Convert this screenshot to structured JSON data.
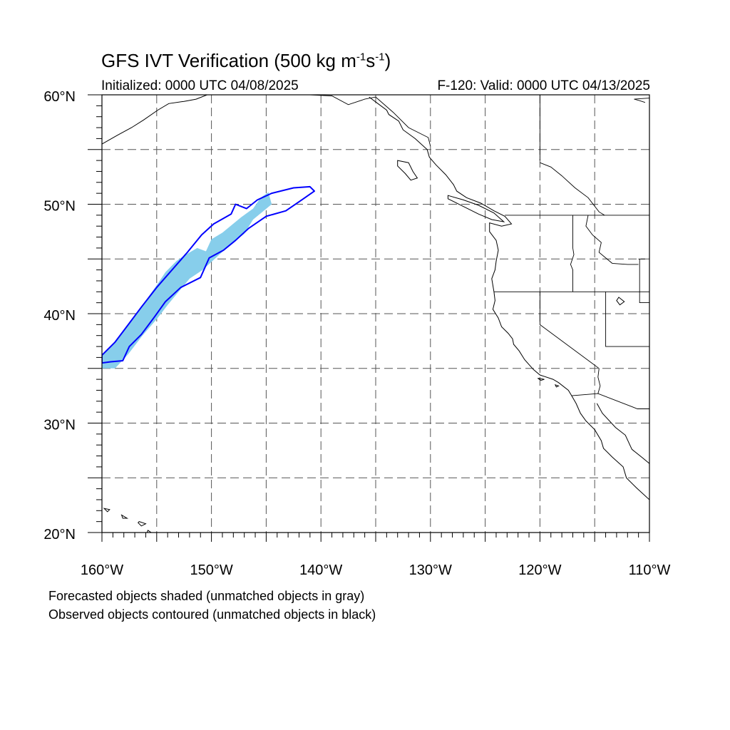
{
  "title": {
    "main": "GFS IVT Verification (500 kg m",
    "sup1": "-1",
    "mid": "s",
    "sup2": "-1",
    "end": ")"
  },
  "initialized": "Initialized: 0000 UTC 04/08/2025",
  "valid": "F-120: Valid: 0000 UTC 04/13/2025",
  "notes": {
    "line1": "Forecasted objects shaded (unmatched objects in gray)",
    "line2": "Observed objects contoured (unmatched objects in black)"
  },
  "axes": {
    "lon_range": [
      -160,
      -110
    ],
    "lat_range": [
      20,
      60
    ],
    "lon_ticks": [
      -160,
      -150,
      -140,
      -130,
      -120,
      -110
    ],
    "lon_labels": [
      "160°W",
      "150°W",
      "140°W",
      "130°W",
      "120°W",
      "110°W"
    ],
    "lat_ticks": [
      20,
      30,
      40,
      50,
      60
    ],
    "lat_labels": [
      "20°N",
      "30°N",
      "40°N",
      "50°N",
      "60°N"
    ],
    "grid_lon": [
      -155,
      -150,
      -145,
      -140,
      -135,
      -130,
      -125,
      -120,
      -115
    ],
    "grid_lat": [
      25,
      30,
      35,
      40,
      45,
      50,
      55
    ]
  },
  "colors": {
    "forecast_fill": "#87ceeb",
    "observed_contour": "#0000ff",
    "coast": "#000000",
    "grid": "#555555"
  },
  "forecast_object": [
    [
      -160,
      36.3
    ],
    [
      -159.2,
      37.0
    ],
    [
      -158.2,
      38.2
    ],
    [
      -157.2,
      39.6
    ],
    [
      -156.0,
      41.2
    ],
    [
      -155.0,
      42.6
    ],
    [
      -154.2,
      43.8
    ],
    [
      -153.2,
      44.8
    ],
    [
      -152.5,
      45.3
    ],
    [
      -151.3,
      46.0
    ],
    [
      -150.5,
      45.7
    ],
    [
      -150.0,
      46.8
    ],
    [
      -149.0,
      47.4
    ],
    [
      -147.3,
      48.8
    ],
    [
      -146.2,
      49.6
    ],
    [
      -145.5,
      50.6
    ],
    [
      -144.8,
      51.1
    ],
    [
      -144.5,
      50.0
    ],
    [
      -146.2,
      48.6
    ],
    [
      -147.0,
      47.3
    ],
    [
      -148.4,
      46.2
    ],
    [
      -149.6,
      45.1
    ],
    [
      -150.8,
      44.0
    ],
    [
      -152.0,
      43.2
    ],
    [
      -153.0,
      42.0
    ],
    [
      -154.0,
      40.8
    ],
    [
      -155.0,
      39.5
    ],
    [
      -156.3,
      38.0
    ],
    [
      -157.6,
      36.3
    ],
    [
      -158.8,
      35.0
    ],
    [
      -160,
      35.0
    ]
  ],
  "observed_object": [
    [
      -160,
      36.2
    ],
    [
      -158.8,
      37.4
    ],
    [
      -157.6,
      39.0
    ],
    [
      -156.4,
      40.6
    ],
    [
      -155.0,
      42.4
    ],
    [
      -153.6,
      44.0
    ],
    [
      -152.2,
      45.6
    ],
    [
      -150.9,
      47.2
    ],
    [
      -149.8,
      48.2
    ],
    [
      -148.2,
      49.1
    ],
    [
      -147.8,
      50.0
    ],
    [
      -146.8,
      49.6
    ],
    [
      -145.8,
      50.4
    ],
    [
      -144.5,
      51.0
    ],
    [
      -142.5,
      51.5
    ],
    [
      -141.0,
      51.6
    ],
    [
      -140.6,
      51.2
    ],
    [
      -141.6,
      50.5
    ],
    [
      -143.2,
      49.4
    ],
    [
      -145.0,
      48.9
    ],
    [
      -146.6,
      47.8
    ],
    [
      -147.8,
      46.7
    ],
    [
      -148.9,
      45.8
    ],
    [
      -150.2,
      45.1
    ],
    [
      -151.0,
      43.3
    ],
    [
      -152.8,
      42.4
    ],
    [
      -154.2,
      41.1
    ],
    [
      -155.2,
      39.7
    ],
    [
      -156.4,
      38.1
    ],
    [
      -157.5,
      37.0
    ],
    [
      -158.1,
      35.7
    ],
    [
      -159.2,
      35.6
    ],
    [
      -160,
      35.5
    ]
  ],
  "coastline": [
    [
      -135.6,
      59.8
    ],
    [
      -134.8,
      59.2
    ],
    [
      -134.0,
      58.6
    ],
    [
      -133.8,
      58.2
    ],
    [
      -132.9,
      57.6
    ],
    [
      -132.5,
      56.8
    ],
    [
      -131.4,
      56.0
    ],
    [
      -130.3,
      55.0
    ],
    [
      -130.1,
      54.3
    ],
    [
      -129.5,
      53.6
    ],
    [
      -128.6,
      52.7
    ],
    [
      -127.9,
      51.8
    ],
    [
      -127.6,
      51.2
    ],
    [
      -126.7,
      50.6
    ],
    [
      -125.4,
      50.1
    ],
    [
      -124.2,
      49.4
    ],
    [
      -123.2,
      48.9
    ],
    [
      -122.6,
      48.2
    ],
    [
      -123.5,
      48.0
    ],
    [
      -124.6,
      48.3
    ],
    [
      -124.6,
      47.5
    ],
    [
      -124.0,
      46.7
    ],
    [
      -123.8,
      45.8
    ],
    [
      -124.0,
      44.8
    ],
    [
      -124.1,
      44.0
    ],
    [
      -124.4,
      43.2
    ],
    [
      -124.2,
      42.0
    ],
    [
      -124.1,
      41.2
    ],
    [
      -124.3,
      40.4
    ],
    [
      -123.8,
      39.6
    ],
    [
      -123.5,
      38.8
    ],
    [
      -122.9,
      38.2
    ],
    [
      -122.5,
      37.7
    ],
    [
      -122.4,
      37.2
    ],
    [
      -121.9,
      36.6
    ],
    [
      -121.4,
      35.8
    ],
    [
      -120.6,
      34.9
    ],
    [
      -120.0,
      34.4
    ],
    [
      -118.8,
      34.0
    ],
    [
      -118.3,
      33.7
    ],
    [
      -117.4,
      33.0
    ],
    [
      -117.1,
      32.5
    ],
    [
      -116.7,
      31.8
    ],
    [
      -116.3,
      30.9
    ],
    [
      -115.8,
      30.2
    ],
    [
      -115.0,
      29.4
    ],
    [
      -114.4,
      28.4
    ],
    [
      -114.2,
      27.7
    ],
    [
      -113.4,
      26.9
    ],
    [
      -112.4,
      26.0
    ],
    [
      -112.1,
      25.0
    ],
    [
      -111.2,
      24.1
    ],
    [
      -110.0,
      23.0
    ]
  ],
  "gulf_coast": [
    [
      -114.8,
      31.8
    ],
    [
      -114.3,
      30.9
    ],
    [
      -113.1,
      29.6
    ],
    [
      -112.2,
      28.9
    ],
    [
      -111.6,
      27.6
    ],
    [
      -110.6,
      26.8
    ],
    [
      -110.0,
      26.3
    ]
  ],
  "alaska_coast": [
    [
      -160,
      55.5
    ],
    [
      -158.6,
      56.3
    ],
    [
      -157.3,
      57.0
    ],
    [
      -156.2,
      57.7
    ],
    [
      -154.9,
      58.6
    ],
    [
      -153.9,
      59.2
    ],
    [
      -152.5,
      59.4
    ],
    [
      -151.4,
      59.6
    ],
    [
      -150.4,
      60.0
    ]
  ],
  "borders": [
    [
      [
        -123.2,
        49.0
      ],
      [
        -110,
        49.0
      ]
    ],
    [
      [
        -124.2,
        42.0
      ],
      [
        -110,
        42.0
      ]
    ],
    [
      [
        -120.0,
        42.0
      ],
      [
        -120.0,
        39.0
      ],
      [
        -114.6,
        35.0
      ]
    ],
    [
      [
        -117.0,
        49.0
      ],
      [
        -117.0,
        46.0
      ],
      [
        -116.9,
        45.4
      ],
      [
        -117.2,
        44.5
      ],
      [
        -117.0,
        44.0
      ],
      [
        -117.0,
        42.0
      ]
    ],
    [
      [
        -114.0,
        42.0
      ],
      [
        -114.0,
        37.0
      ],
      [
        -110,
        37.0
      ]
    ],
    [
      [
        -115.6,
        49.0
      ],
      [
        -115.8,
        48.0
      ],
      [
        -115.2,
        47.2
      ],
      [
        -114.4,
        46.5
      ],
      [
        -114.6,
        45.6
      ],
      [
        -113.4,
        44.6
      ],
      [
        -112.0,
        44.5
      ],
      [
        -111.0,
        44.5
      ]
    ],
    [
      [
        -111.0,
        45.0
      ],
      [
        -110.4,
        45.0
      ]
    ],
    [
      [
        -110.9,
        45.0
      ],
      [
        -110.9,
        41.0
      ],
      [
        -110,
        41.0
      ]
    ],
    [
      [
        -117.1,
        32.5
      ],
      [
        -114.7,
        32.7
      ],
      [
        -111.1,
        31.3
      ],
      [
        -110,
        31.3
      ]
    ],
    [
      [
        -120.0,
        60.0
      ],
      [
        -120.0,
        54.0
      ]
    ],
    [
      [
        -120.0,
        53.8
      ],
      [
        -119.0,
        53.4
      ],
      [
        -118.0,
        52.6
      ],
      [
        -116.8,
        51.5
      ],
      [
        -115.6,
        50.6
      ],
      [
        -114.6,
        49.3
      ],
      [
        -114.1,
        49.0
      ]
    ],
    [
      [
        -114.6,
        35.0
      ],
      [
        -114.7,
        34.2
      ],
      [
        -114.5,
        33.4
      ],
      [
        -114.7,
        32.7
      ]
    ],
    [
      [
        -141.0,
        60.0
      ],
      [
        -139.0,
        59.9
      ],
      [
        -137.5,
        59.1
      ],
      [
        -136.0,
        59.6
      ],
      [
        -135.0,
        59.8
      ],
      [
        -133.4,
        58.4
      ],
      [
        -132.0,
        57.0
      ],
      [
        -130.2,
        56.1
      ],
      [
        -130.0,
        55.3
      ]
    ],
    [
      [
        -110.4,
        59.3
      ],
      [
        -111.0,
        59.5
      ],
      [
        -111.4,
        59.6
      ],
      [
        -110.0,
        59.7
      ]
    ]
  ],
  "islands": [
    [
      [
        -133.0,
        54.0
      ],
      [
        -132.0,
        53.8
      ],
      [
        -131.6,
        53.0
      ],
      [
        -131.2,
        52.4
      ],
      [
        -131.8,
        52.2
      ],
      [
        -132.3,
        52.8
      ],
      [
        -133.0,
        53.5
      ],
      [
        -133.0,
        54.0
      ]
    ],
    [
      [
        -128.4,
        50.8
      ],
      [
        -127.0,
        50.4
      ],
      [
        -125.6,
        49.9
      ],
      [
        -124.2,
        49.2
      ],
      [
        -123.3,
        48.4
      ],
      [
        -124.4,
        48.6
      ],
      [
        -125.6,
        49.1
      ],
      [
        -127.0,
        49.8
      ],
      [
        -128.4,
        50.5
      ],
      [
        -128.4,
        50.8
      ]
    ],
    [
      [
        -155.8,
        20.2
      ],
      [
        -155.2,
        19.8
      ],
      [
        -154.8,
        19.5
      ],
      [
        -155.1,
        19.2
      ],
      [
        -155.9,
        19.1
      ],
      [
        -156.0,
        19.7
      ],
      [
        -155.8,
        20.2
      ]
    ],
    [
      [
        -156.6,
        21.0
      ],
      [
        -156.0,
        20.8
      ],
      [
        -156.4,
        20.6
      ],
      [
        -156.7,
        20.9
      ],
      [
        -156.6,
        21.0
      ]
    ],
    [
      [
        -158.2,
        21.6
      ],
      [
        -157.7,
        21.3
      ],
      [
        -158.1,
        21.3
      ],
      [
        -158.2,
        21.6
      ]
    ],
    [
      [
        -159.8,
        22.2
      ],
      [
        -159.3,
        22.1
      ],
      [
        -159.5,
        21.9
      ],
      [
        -159.8,
        22.2
      ]
    ],
    [
      [
        -118.6,
        33.5
      ],
      [
        -118.3,
        33.4
      ],
      [
        -118.5,
        33.3
      ],
      [
        -118.6,
        33.5
      ]
    ],
    [
      [
        -120.2,
        34.1
      ],
      [
        -119.6,
        34.0
      ],
      [
        -119.9,
        33.9
      ],
      [
        -120.2,
        34.1
      ]
    ]
  ],
  "lakes": [
    [
      [
        -112.8,
        41.5
      ],
      [
        -112.3,
        41.1
      ],
      [
        -112.7,
        40.8
      ],
      [
        -113.0,
        41.2
      ],
      [
        -112.8,
        41.5
      ]
    ]
  ]
}
